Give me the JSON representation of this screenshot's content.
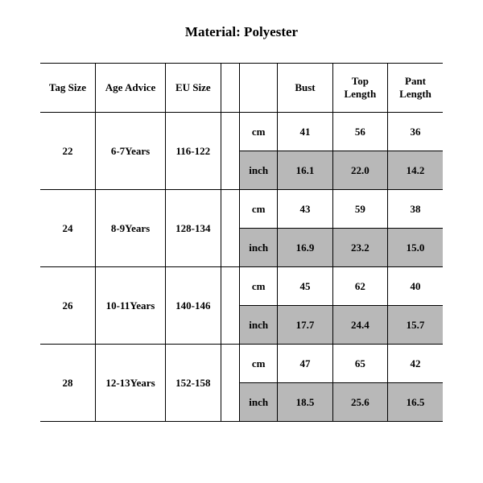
{
  "title": "Material: Polyester",
  "table": {
    "columns": [
      "Tag Size",
      "Age Advice",
      "EU Size",
      "",
      "",
      "Bust",
      "Top Length",
      "Pant Length"
    ],
    "unit_labels": {
      "cm": "cm",
      "inch": "inch"
    },
    "rows": [
      {
        "tag": "22",
        "age": "6-7Years",
        "eu": "116-122",
        "cm": {
          "bust": "41",
          "top": "56",
          "pant": "36"
        },
        "inch": {
          "bust": "16.1",
          "top": "22.0",
          "pant": "14.2"
        }
      },
      {
        "tag": "24",
        "age": "8-9Years",
        "eu": "128-134",
        "cm": {
          "bust": "43",
          "top": "59",
          "pant": "38"
        },
        "inch": {
          "bust": "16.9",
          "top": "23.2",
          "pant": "15.0"
        }
      },
      {
        "tag": "26",
        "age": "10-11Years",
        "eu": "140-146",
        "cm": {
          "bust": "45",
          "top": "62",
          "pant": "40"
        },
        "inch": {
          "bust": "17.7",
          "top": "24.4",
          "pant": "15.7"
        }
      },
      {
        "tag": "28",
        "age": "12-13Years",
        "eu": "152-158",
        "cm": {
          "bust": "47",
          "top": "65",
          "pant": "42"
        },
        "inch": {
          "bust": "18.5",
          "top": "25.6",
          "pant": "16.5"
        }
      }
    ]
  },
  "style": {
    "background_color": "#ffffff",
    "text_color": "#000000",
    "shaded_color": "#b8b8b8",
    "border_color": "#000000",
    "title_fontsize": 17,
    "cell_fontsize": 13,
    "font_family": "Times New Roman"
  }
}
